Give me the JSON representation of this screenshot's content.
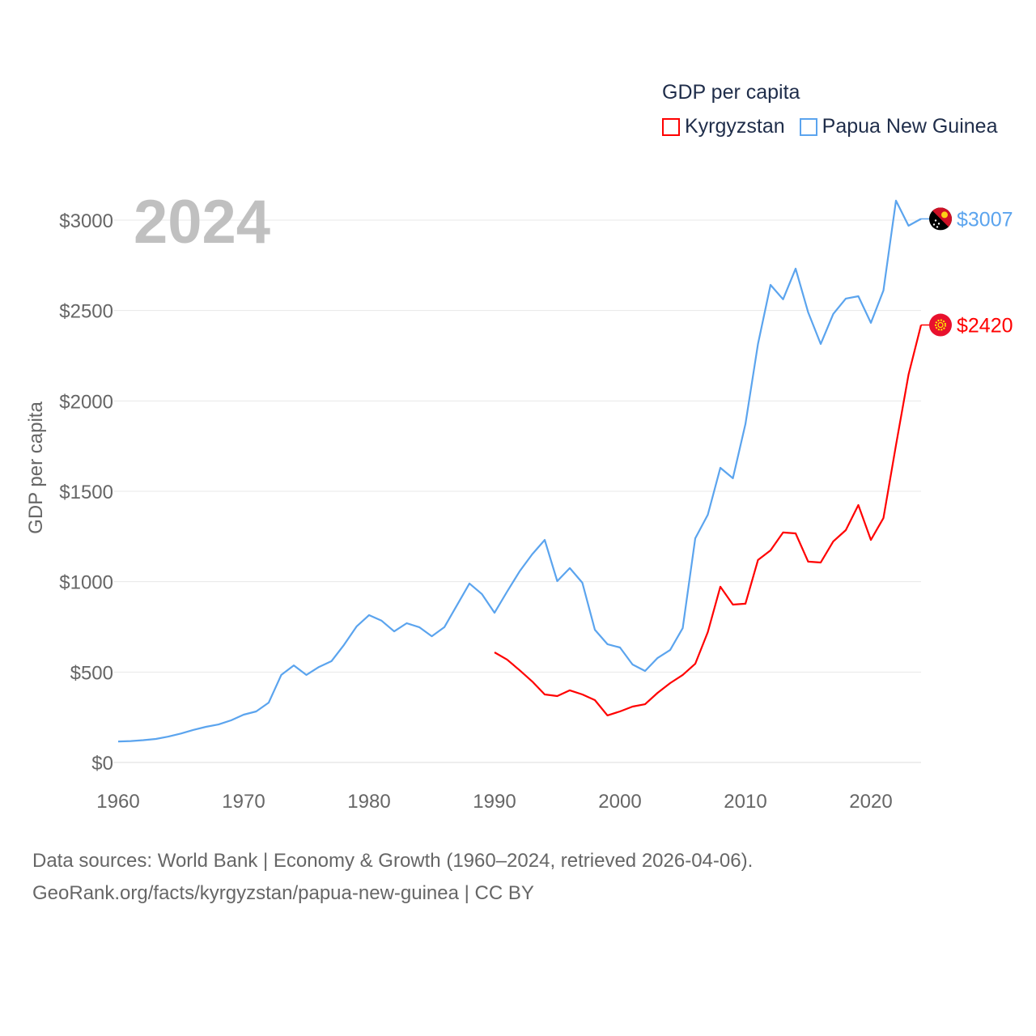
{
  "chart_data": {
    "type": "line",
    "title": "GDP per capita",
    "year_label": "2024",
    "ylabel": "GDP per capita",
    "xlabel": "",
    "xlim": [
      1960,
      2024
    ],
    "ylim": [
      0,
      3200
    ],
    "x_ticks": [
      1960,
      1970,
      1980,
      1990,
      2000,
      2010,
      2020
    ],
    "y_ticks": [
      0,
      500,
      1000,
      1500,
      2000,
      2500,
      3000
    ],
    "y_tick_labels": [
      "$0",
      "$500",
      "$1000",
      "$1500",
      "$2000",
      "$2500",
      "$3000"
    ],
    "grid": true,
    "legend_position": "top-right",
    "series": [
      {
        "name": "Kyrgyzstan",
        "color": "#ff0000",
        "end_label": "$2420",
        "flag": "kyrgyzstan-flag",
        "start_year": 1990,
        "values": [
          609,
          569,
          510,
          448,
          376,
          367,
          399,
          376,
          345,
          260,
          282,
          309,
          322,
          385,
          439,
          484,
          546,
          721,
          972,
          873,
          878,
          1120,
          1173,
          1272,
          1267,
          1111,
          1106,
          1223,
          1285,
          1424,
          1231,
          1352,
          1755,
          2145,
          2420
        ]
      },
      {
        "name": "Papua New Guinea",
        "color": "#5ba4ee",
        "end_label": "$3007",
        "flag": "papua-new-guinea-flag",
        "start_year": 1960,
        "values": [
          116,
          118,
          123,
          130,
          143,
          160,
          180,
          197,
          210,
          233,
          264,
          282,
          331,
          484,
          537,
          484,
          528,
          560,
          650,
          752,
          815,
          784,
          725,
          770,
          748,
          698,
          748,
          869,
          990,
          931,
          828,
          945,
          1057,
          1151,
          1231,
          1003,
          1075,
          994,
          734,
          654,
          636,
          542,
          506,
          578,
          622,
          743,
          1240,
          1370,
          1630,
          1572,
          1872,
          2315,
          2642,
          2562,
          2732,
          2490,
          2315,
          2481,
          2566,
          2579,
          2432,
          2611,
          3108,
          2969,
          3007
        ]
      }
    ]
  },
  "footer": {
    "line1": "Data sources: World Bank | Economy & Growth (1960–2024, retrieved 2026-04-06).",
    "line2": "GeoRank.org/facts/kyrgyzstan/papua-new-guinea | CC BY"
  }
}
